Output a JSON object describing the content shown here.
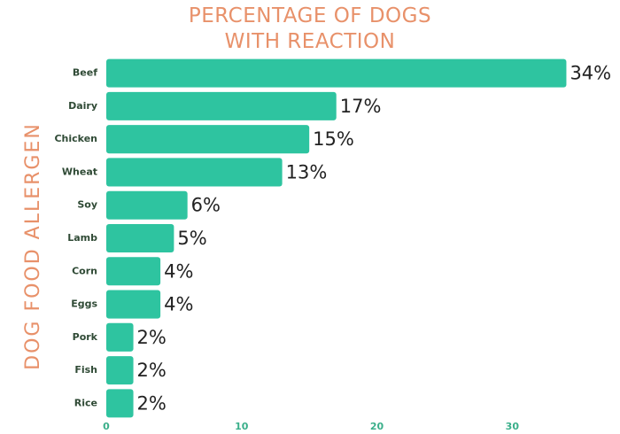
{
  "chart_data": {
    "type": "bar",
    "orientation": "horizontal",
    "title": "PERCENTAGE OF DOGS WITH REACTION",
    "y_label": "DOG FOOD ALLERGEN",
    "categories": [
      "Beef",
      "Dairy",
      "Chicken",
      "Wheat",
      "Soy",
      "Lamb",
      "Corn",
      "Eggs",
      "Pork",
      "Fish",
      "Rice"
    ],
    "values": [
      34,
      17,
      15,
      13,
      6,
      5,
      4,
      4,
      2,
      2,
      2
    ],
    "value_labels": [
      "34%",
      "17%",
      "15%",
      "13%",
      "6%",
      "5%",
      "4%",
      "4%",
      "2%",
      "2%",
      "2%"
    ],
    "color": "#2ec4a0",
    "xlim": [
      0,
      36
    ],
    "xticks": [
      0,
      10,
      20,
      30
    ],
    "grid": false
  }
}
